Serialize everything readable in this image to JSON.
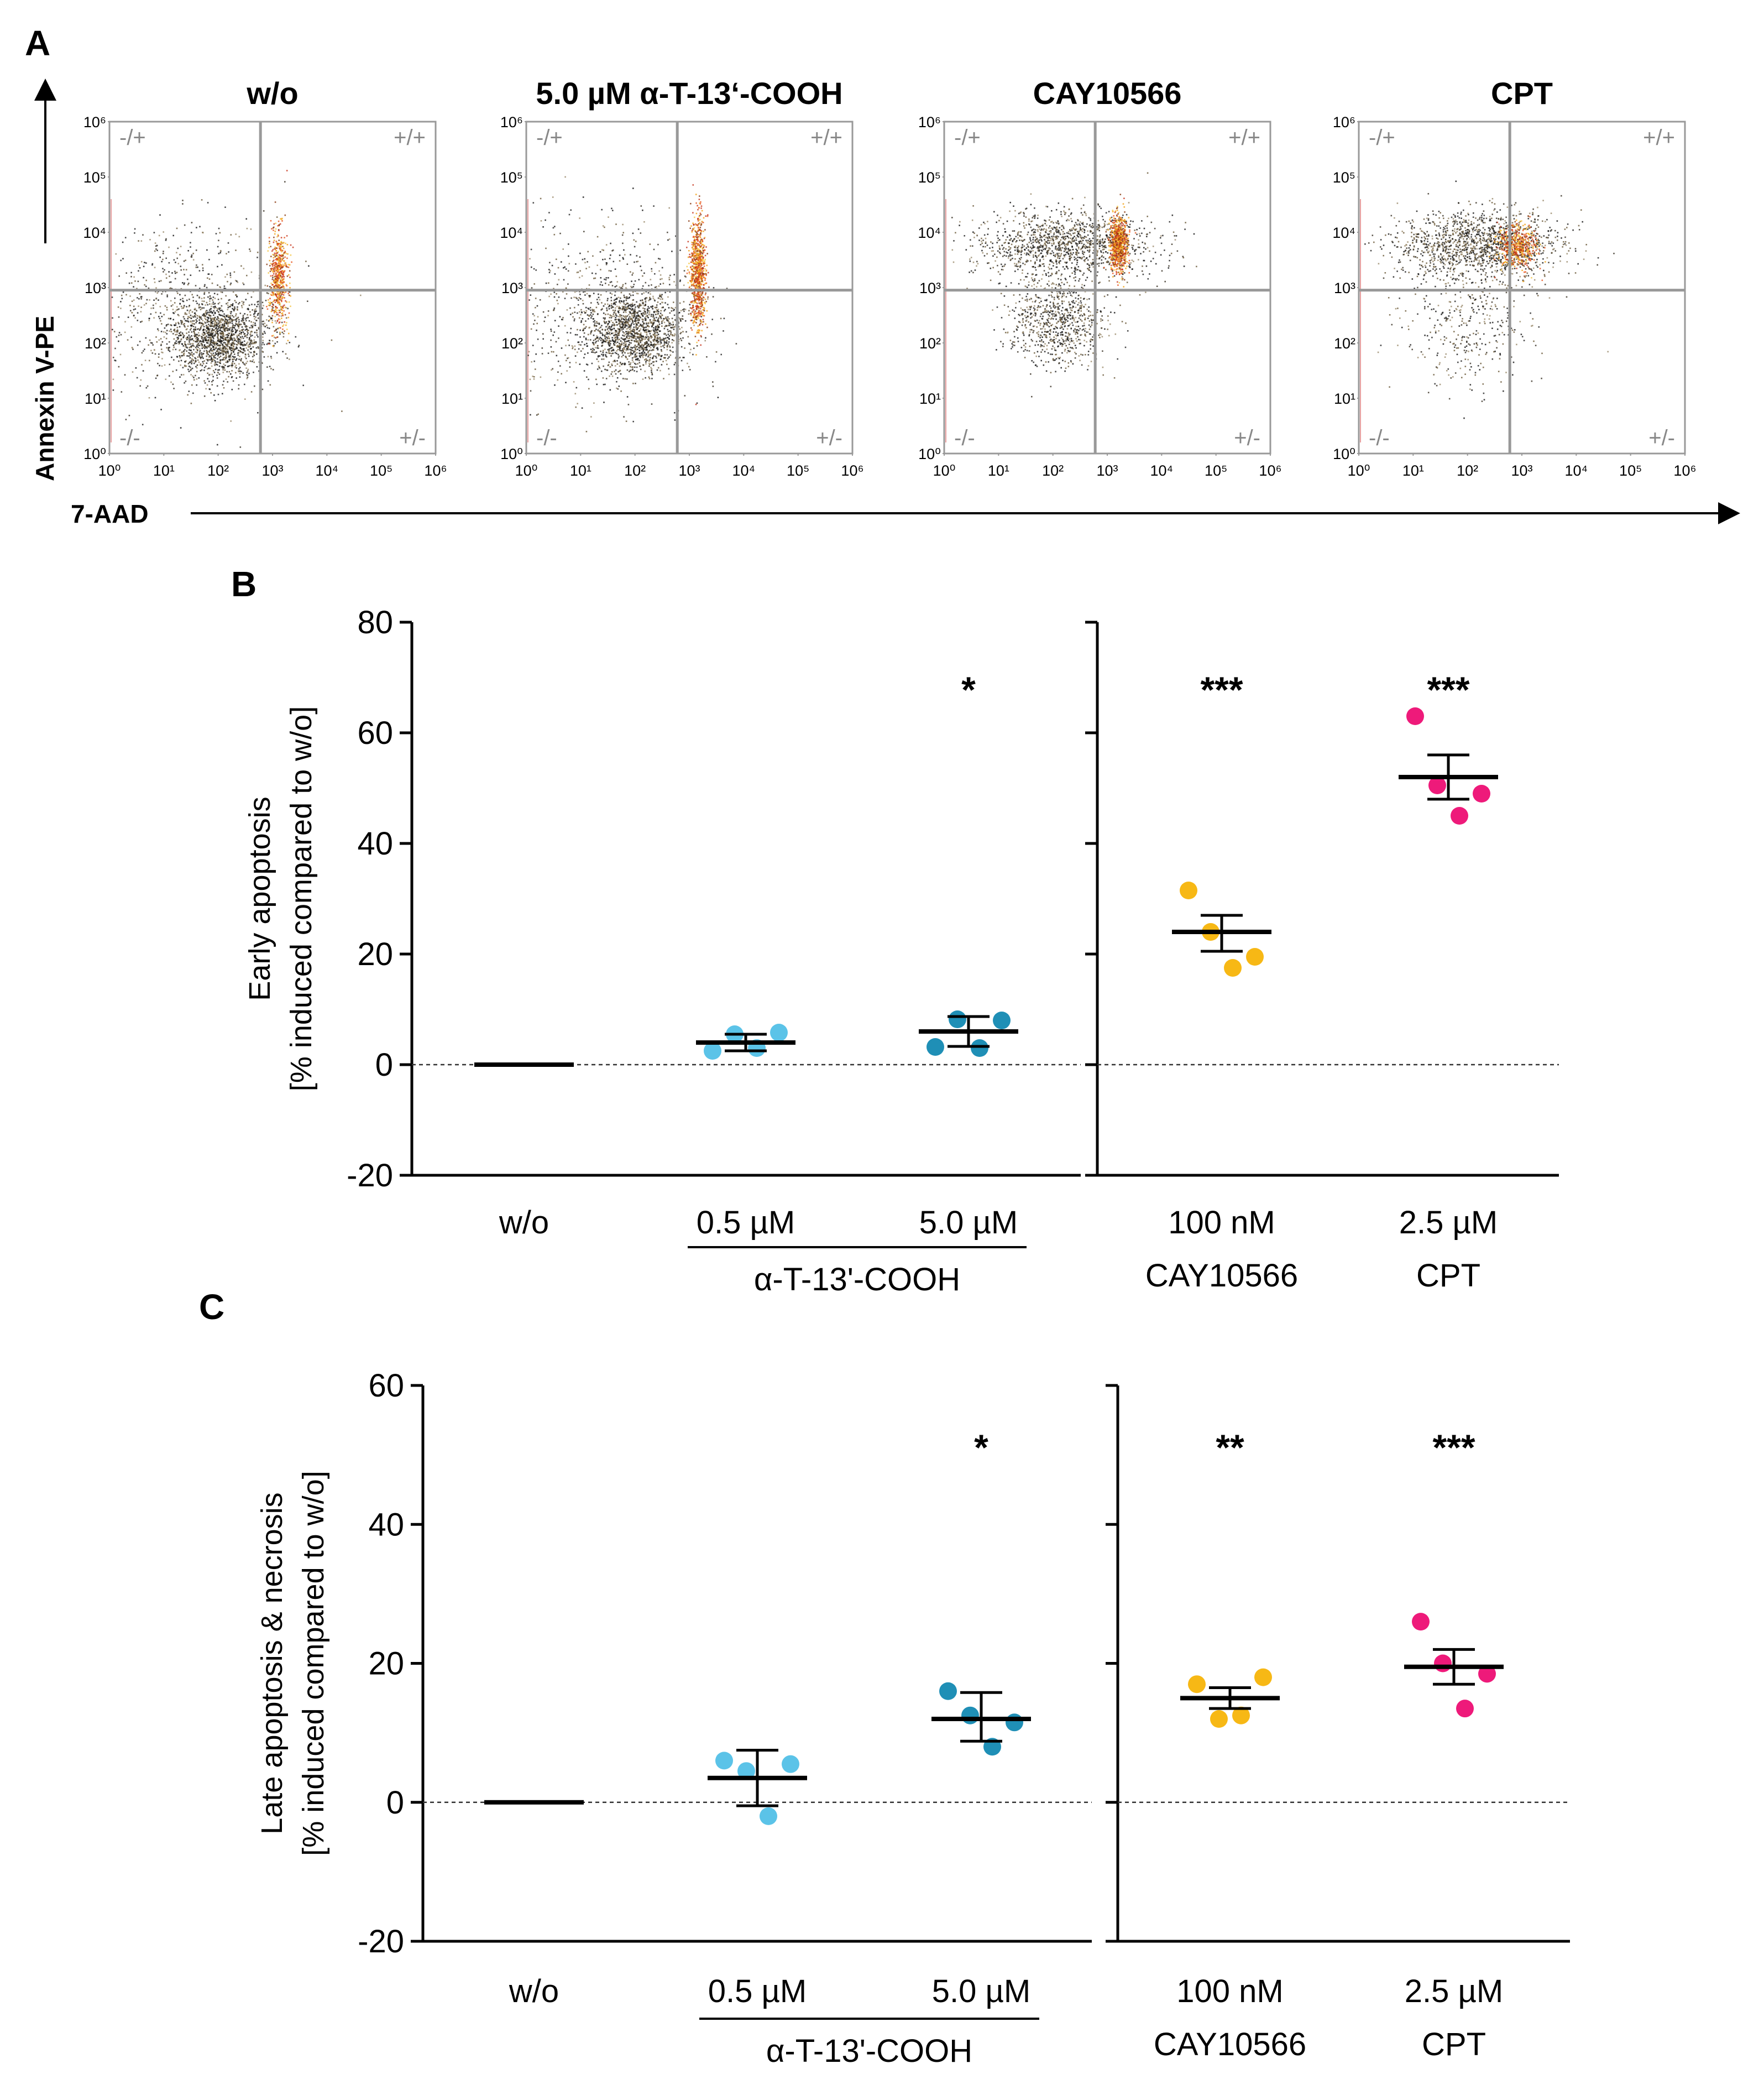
{
  "chart_data": [
    {
      "panel": "A",
      "type": "scatter",
      "subtype": "flow-cytometry-dot-plot",
      "xlabel": "7-AAD",
      "ylabel": "Annexin V-PE",
      "scale": "log10",
      "xlim": [
        1,
        1000000
      ],
      "ylim": [
        1,
        1000000
      ],
      "tick_labels": [
        "10⁰",
        "10¹",
        "10²",
        "10³",
        "10⁴",
        "10⁵",
        "10⁶"
      ],
      "gate": {
        "x": 600,
        "y": 900
      },
      "quadrant_labels": {
        "top_left": "-/+",
        "top_right": "+/+",
        "bottom_left": "-/-",
        "bottom_right": "+/-"
      },
      "plots": [
        {
          "title": "w/o",
          "profile": "wo"
        },
        {
          "title": "5.0 µM α-T-13‘-COOH",
          "profile": "at13"
        },
        {
          "title": "CAY10566",
          "profile": "cay"
        },
        {
          "title": "CPT",
          "profile": "cpt"
        }
      ]
    },
    {
      "panel": "B",
      "type": "scatter",
      "subtype": "dot-plot-mean-sem",
      "ylabel": "Early apoptosis",
      "ylabel2": "[% induced compared to  w/o]",
      "ylim": [
        -20,
        80
      ],
      "yticks": [
        -20,
        0,
        20,
        40,
        60,
        80
      ],
      "reference_line": 0,
      "groups": [
        {
          "label": "w/o",
          "label2": "",
          "color": "#000000",
          "points": [],
          "mean": 0,
          "sem_low": 0,
          "sem_high": 0,
          "sig": ""
        },
        {
          "label": "0.5 µM",
          "label2": "",
          "color": "#5bc3e8",
          "points": [
            2.5,
            5.5,
            3.0,
            5.8
          ],
          "mean": 4.0,
          "sem_low": 2.5,
          "sem_high": 5.5,
          "sig": ""
        },
        {
          "label": "5.0 µM",
          "label2": "",
          "color": "#1f8fb6",
          "points": [
            3.2,
            8.2,
            3.0,
            8.0
          ],
          "mean": 6.0,
          "sem_low": 3.3,
          "sem_high": 8.7,
          "sig": "*"
        },
        {
          "label": "100 nM",
          "label2": "CAY10566",
          "color": "#f7b815",
          "points": [
            31.5,
            24.0,
            17.5,
            19.5
          ],
          "mean": 24.0,
          "sem_low": 20.5,
          "sem_high": 27.0,
          "sig": "***"
        },
        {
          "label": "2.5 µM",
          "label2": "CPT",
          "color": "#ee1a7a",
          "points": [
            63.0,
            50.5,
            45.0,
            49.0
          ],
          "mean": 52.0,
          "sem_low": 48.0,
          "sem_high": 56.0,
          "sig": "***"
        }
      ],
      "bracket_label": "α-T-13'-COOH"
    },
    {
      "panel": "C",
      "type": "scatter",
      "subtype": "dot-plot-mean-sem",
      "ylabel": "Late apoptosis & necrosis",
      "ylabel2": "[% induced compared to  w/o]",
      "ylim": [
        -20,
        60
      ],
      "yticks": [
        -20,
        0,
        20,
        40,
        60
      ],
      "reference_line": 0,
      "groups": [
        {
          "label": "w/o",
          "label2": "",
          "color": "#000000",
          "points": [],
          "mean": 0,
          "sem_low": 0,
          "sem_high": 0,
          "sig": ""
        },
        {
          "label": "0.5 µM",
          "label2": "",
          "color": "#5bc3e8",
          "points": [
            6.0,
            4.5,
            -2.0,
            5.5
          ],
          "mean": 3.5,
          "sem_low": -0.5,
          "sem_high": 7.5,
          "sig": ""
        },
        {
          "label": "5.0 µM",
          "label2": "",
          "color": "#1f8fb6",
          "points": [
            16.0,
            12.5,
            8.0,
            11.5
          ],
          "mean": 12.0,
          "sem_low": 8.8,
          "sem_high": 15.8,
          "sig": "*"
        },
        {
          "label": "100 nM",
          "label2": "CAY10566",
          "color": "#f7b815",
          "points": [
            17.0,
            12.0,
            12.5,
            18.0
          ],
          "mean": 15.0,
          "sem_low": 13.5,
          "sem_high": 16.5,
          "sig": "**"
        },
        {
          "label": "2.5 µM",
          "label2": "CPT",
          "color": "#ee1a7a",
          "points": [
            26.0,
            20.0,
            13.5,
            18.5
          ],
          "mean": 19.5,
          "sem_low": 17.0,
          "sem_high": 22.0,
          "sig": "***"
        }
      ],
      "bracket_label": "α-T-13'-COOH"
    }
  ],
  "panel_letters": {
    "a": "A",
    "b": "B",
    "c": "C"
  }
}
